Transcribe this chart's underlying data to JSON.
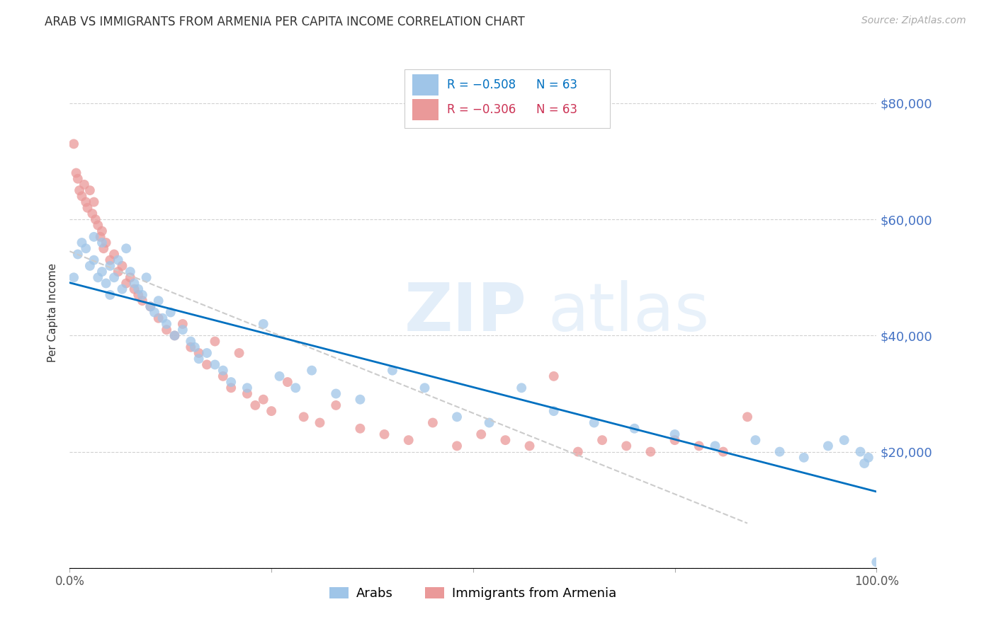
{
  "title": "ARAB VS IMMIGRANTS FROM ARMENIA PER CAPITA INCOME CORRELATION CHART",
  "source": "Source: ZipAtlas.com",
  "ylabel": "Per Capita Income",
  "xlim": [
    0,
    1.0
  ],
  "ylim": [
    0,
    88000
  ],
  "yticks": [
    0,
    20000,
    40000,
    60000,
    80000
  ],
  "ytick_labels": [
    "",
    "$20,000",
    "$40,000",
    "$60,000",
    "$80,000"
  ],
  "xticks": [
    0,
    0.25,
    0.5,
    0.75,
    1.0
  ],
  "xtick_labels": [
    "0.0%",
    "",
    "",
    "",
    "100.0%"
  ],
  "legend_r1": "-0.508",
  "legend_n1": "63",
  "legend_r2": "-0.306",
  "legend_n2": "63",
  "label_arabs": "Arabs",
  "label_armenia": "Immigrants from Armenia",
  "color_blue": "#9fc5e8",
  "color_pink": "#ea9999",
  "color_line_blue": "#0070c0",
  "color_line_pink_dash": "#cccccc",
  "color_axis_text": "#4472c4",
  "watermark_zip": "ZIP",
  "watermark_atlas": "atlas",
  "arab_x": [
    0.005,
    0.01,
    0.015,
    0.02,
    0.025,
    0.03,
    0.03,
    0.035,
    0.04,
    0.04,
    0.045,
    0.05,
    0.05,
    0.055,
    0.06,
    0.065,
    0.07,
    0.075,
    0.08,
    0.085,
    0.09,
    0.095,
    0.1,
    0.105,
    0.11,
    0.115,
    0.12,
    0.125,
    0.13,
    0.14,
    0.15,
    0.155,
    0.16,
    0.17,
    0.18,
    0.19,
    0.2,
    0.22,
    0.24,
    0.26,
    0.28,
    0.3,
    0.33,
    0.36,
    0.4,
    0.44,
    0.48,
    0.52,
    0.56,
    0.6,
    0.65,
    0.7,
    0.75,
    0.8,
    0.85,
    0.88,
    0.91,
    0.94,
    0.96,
    0.98,
    0.985,
    0.99,
    1.0
  ],
  "arab_y": [
    50000,
    54000,
    56000,
    55000,
    52000,
    57000,
    53000,
    50000,
    56000,
    51000,
    49000,
    52000,
    47000,
    50000,
    53000,
    48000,
    55000,
    51000,
    49000,
    48000,
    47000,
    50000,
    45000,
    44000,
    46000,
    43000,
    42000,
    44000,
    40000,
    41000,
    39000,
    38000,
    36000,
    37000,
    35000,
    34000,
    32000,
    31000,
    42000,
    33000,
    31000,
    34000,
    30000,
    29000,
    34000,
    31000,
    26000,
    25000,
    31000,
    27000,
    25000,
    24000,
    23000,
    21000,
    22000,
    20000,
    19000,
    21000,
    22000,
    20000,
    18000,
    19000,
    1000
  ],
  "armenia_x": [
    0.005,
    0.008,
    0.01,
    0.012,
    0.015,
    0.018,
    0.02,
    0.022,
    0.025,
    0.028,
    0.03,
    0.032,
    0.035,
    0.038,
    0.04,
    0.042,
    0.045,
    0.05,
    0.055,
    0.06,
    0.065,
    0.07,
    0.075,
    0.08,
    0.085,
    0.09,
    0.1,
    0.11,
    0.12,
    0.13,
    0.14,
    0.15,
    0.16,
    0.17,
    0.18,
    0.19,
    0.2,
    0.21,
    0.22,
    0.23,
    0.24,
    0.25,
    0.27,
    0.29,
    0.31,
    0.33,
    0.36,
    0.39,
    0.42,
    0.45,
    0.48,
    0.51,
    0.54,
    0.57,
    0.6,
    0.63,
    0.66,
    0.69,
    0.72,
    0.75,
    0.78,
    0.81,
    0.84
  ],
  "armenia_y": [
    73000,
    68000,
    67000,
    65000,
    64000,
    66000,
    63000,
    62000,
    65000,
    61000,
    63000,
    60000,
    59000,
    57000,
    58000,
    55000,
    56000,
    53000,
    54000,
    51000,
    52000,
    49000,
    50000,
    48000,
    47000,
    46000,
    45000,
    43000,
    41000,
    40000,
    42000,
    38000,
    37000,
    35000,
    39000,
    33000,
    31000,
    37000,
    30000,
    28000,
    29000,
    27000,
    32000,
    26000,
    25000,
    28000,
    24000,
    23000,
    22000,
    25000,
    21000,
    23000,
    22000,
    21000,
    33000,
    20000,
    22000,
    21000,
    20000,
    22000,
    21000,
    20000,
    26000
  ]
}
